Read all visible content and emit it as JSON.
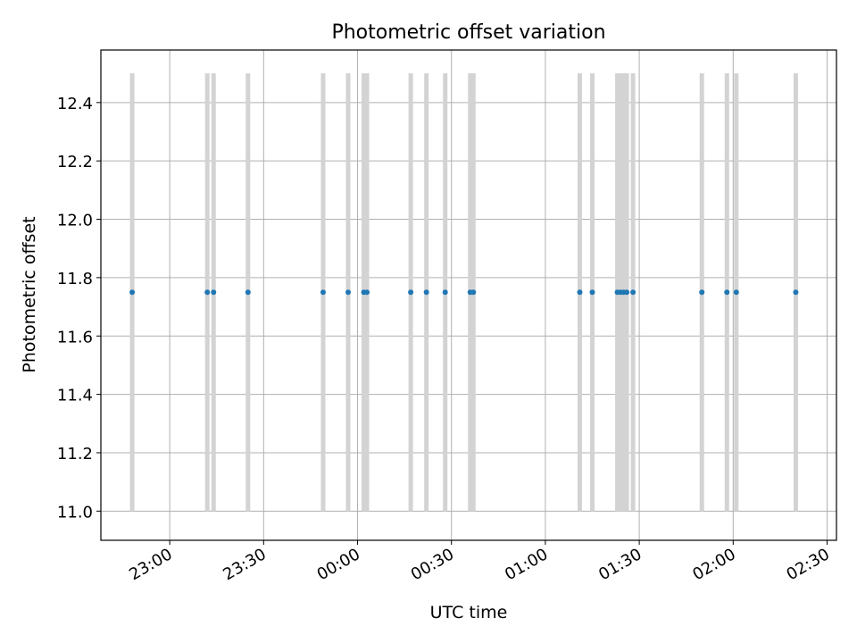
{
  "chart_data": {
    "type": "scatter",
    "title": "Photometric offset variation",
    "xlabel": "UTC time",
    "ylabel": "Photometric offset",
    "x_axis_type": "time",
    "xlim": [
      "22:38",
      "02:33"
    ],
    "x_ticks": [
      "23:00",
      "23:30",
      "00:00",
      "00:30",
      "01:00",
      "01:30",
      "02:00",
      "02:30"
    ],
    "ylim": [
      10.9,
      12.58
    ],
    "y_ticks": [
      "11.0",
      "11.2",
      "11.4",
      "11.6",
      "11.8",
      "12.0",
      "12.2",
      "12.4"
    ],
    "grid": true,
    "error_bar_color": "#d3d3d3",
    "marker_color": "#1f77b4",
    "series": [
      {
        "x": [
          "22:48",
          "23:12",
          "23:14",
          "23:25",
          "23:49",
          "23:57",
          "00:02",
          "00:03",
          "00:17",
          "00:22",
          "00:28",
          "00:36",
          "00:37",
          "01:11",
          "01:15",
          "01:23",
          "01:24",
          "01:25",
          "01:26",
          "01:28",
          "01:50",
          "01:58",
          "02:01",
          "02:20"
        ],
        "y": [
          11.75,
          11.75,
          11.75,
          11.75,
          11.75,
          11.75,
          11.75,
          11.75,
          11.75,
          11.75,
          11.75,
          11.75,
          11.75,
          11.75,
          11.75,
          11.75,
          11.75,
          11.75,
          11.75,
          11.75,
          11.75,
          11.75,
          11.75,
          11.75
        ],
        "y_err_range": [
          11.0,
          12.5
        ]
      }
    ]
  }
}
